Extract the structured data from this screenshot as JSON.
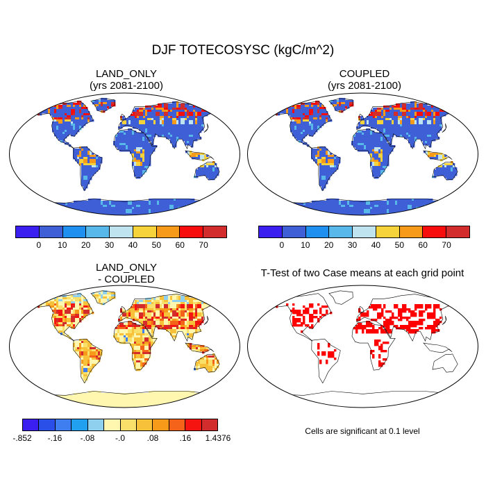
{
  "figure": {
    "title": "DJF TOTECOSYSC (kgC/m^2)"
  },
  "panels": [
    {
      "id": "land-only",
      "title_line1": "LAND_ONLY",
      "title_line2": "(yrs 2081-2100)",
      "palette": "level",
      "colorbar": {
        "colors": [
          "#3b1ef0",
          "#3f5fd6",
          "#1f8ff0",
          "#59b8ea",
          "#bfe4f0",
          "#f6d33a",
          "#f79a1a",
          "#f80d0d",
          "#d22c2c"
        ],
        "tick_labels": [
          "0",
          "10",
          "20",
          "30",
          "40",
          "50",
          "60",
          "70"
        ]
      }
    },
    {
      "id": "coupled",
      "title_line1": "COUPLED",
      "title_line2": "(yrs 2081-2100)",
      "palette": "level",
      "colorbar": {
        "colors": [
          "#3b1ef0",
          "#3f5fd6",
          "#1f8ff0",
          "#59b8ea",
          "#bfe4f0",
          "#f6d33a",
          "#f79a1a",
          "#f80d0d",
          "#d22c2c"
        ],
        "tick_labels": [
          "0",
          "10",
          "20",
          "30",
          "40",
          "50",
          "60",
          "70"
        ]
      }
    },
    {
      "id": "difference",
      "title_line1": "LAND_ONLY",
      "title_line2": "- COUPLED",
      "palette": "diff",
      "colorbar": {
        "colors": [
          "#3b1ef0",
          "#2a4fe8",
          "#3f7ef0",
          "#22a0f0",
          "#8fd0ee",
          "#fff6b0",
          "#f8e06a",
          "#f7c23a",
          "#f79a1a",
          "#f5631a",
          "#f5140f",
          "#d22c2c"
        ],
        "tick_labels": [
          "-.852",
          "-.16",
          "-.08",
          "-.0",
          ".08",
          ".16",
          "1.4376"
        ]
      }
    },
    {
      "id": "ttest",
      "title_line1": "T-Test of two Case means at each grid point",
      "palette": "sig",
      "note": "Cells are significant at 0.1 level"
    }
  ]
}
